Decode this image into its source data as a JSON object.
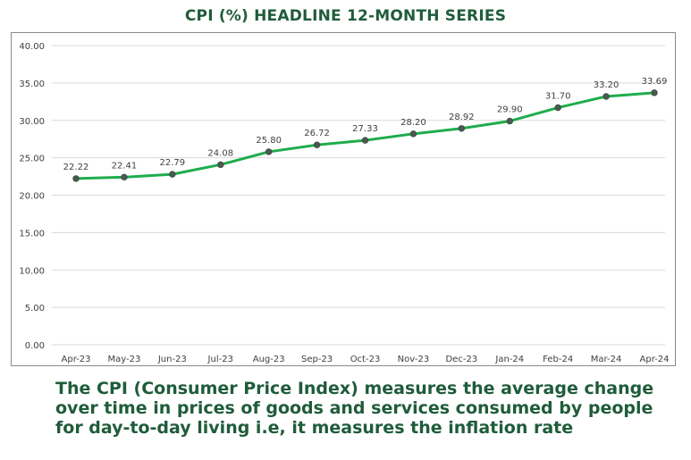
{
  "caption": "The CPI (Consumer Price Index) measures the average change over time in prices of goods and services consumed by people for day-to-day living i.e, it measures the inflation rate",
  "colors": {
    "line": "#1fac4c",
    "marker": "#4a5a50",
    "title": "#1f5c3a",
    "grid": "#d9d9d9"
  },
  "chart_data": {
    "type": "line",
    "title": "CPI (%)  HEADLINE 12-MONTH SERIES",
    "xlabel": "",
    "ylabel": "",
    "categories": [
      "Apr-23",
      "May-23",
      "Jun-23",
      "Jul-23",
      "Aug-23",
      "Sep-23",
      "Oct-23",
      "Nov-23",
      "Dec-23",
      "Jan-24",
      "Feb-24",
      "Mar-24",
      "Apr-24"
    ],
    "values": [
      22.22,
      22.41,
      22.79,
      24.08,
      25.8,
      26.72,
      27.33,
      28.2,
      28.92,
      29.9,
      31.7,
      33.2,
      33.69
    ],
    "ylim": [
      0,
      40
    ],
    "yticks": [
      "0.00",
      "5.00",
      "10.00",
      "15.00",
      "20.00",
      "25.00",
      "30.00",
      "35.00",
      "40.00"
    ],
    "grid": true,
    "legend": "none"
  }
}
